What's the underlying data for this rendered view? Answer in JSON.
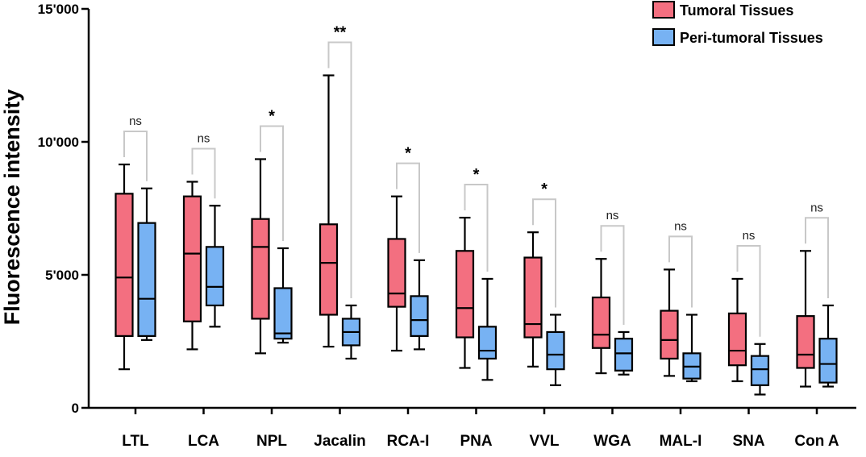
{
  "chart_data": {
    "type": "box",
    "ylabel": "Fluorescence intensity",
    "ylim": [
      0,
      15000
    ],
    "yticks": [
      0,
      5000,
      10000,
      15000
    ],
    "ytick_labels": [
      "0",
      "5'000",
      "10'000",
      "15'000"
    ],
    "legend": {
      "placement": "top-right"
    },
    "colors": {
      "tumoral": "#f36f80",
      "peri": "#77b2f3",
      "bracket": "#c8c8c8"
    },
    "categories": [
      "LTL",
      "LCA",
      "NPL",
      "Jacalin",
      "RCA-I",
      "PNA",
      "VVL",
      "WGA",
      "MAL-I",
      "SNA",
      "Con A"
    ],
    "series": [
      {
        "name": "Tumoral Tissues",
        "boxes": [
          {
            "min": 1450,
            "q1": 2700,
            "median": 4900,
            "q3": 8050,
            "max": 9150
          },
          {
            "min": 2200,
            "q1": 3250,
            "median": 5800,
            "q3": 7950,
            "max": 8500
          },
          {
            "min": 2050,
            "q1": 3350,
            "median": 6050,
            "q3": 7100,
            "max": 9350
          },
          {
            "min": 2300,
            "q1": 3500,
            "median": 5450,
            "q3": 6900,
            "max": 12500
          },
          {
            "min": 2150,
            "q1": 3800,
            "median": 4300,
            "q3": 6350,
            "max": 7950
          },
          {
            "min": 1500,
            "q1": 2650,
            "median": 3750,
            "q3": 5900,
            "max": 7150
          },
          {
            "min": 1550,
            "q1": 2650,
            "median": 3150,
            "q3": 5650,
            "max": 6600
          },
          {
            "min": 1300,
            "q1": 2250,
            "median": 2750,
            "q3": 4150,
            "max": 5600
          },
          {
            "min": 1200,
            "q1": 1850,
            "median": 2550,
            "q3": 3650,
            "max": 5200
          },
          {
            "min": 1000,
            "q1": 1600,
            "median": 2150,
            "q3": 3550,
            "max": 4850
          },
          {
            "min": 800,
            "q1": 1500,
            "median": 2000,
            "q3": 3450,
            "max": 5900
          }
        ]
      },
      {
        "name": "Peri-tumoral Tissues",
        "boxes": [
          {
            "min": 2550,
            "q1": 2700,
            "median": 4100,
            "q3": 6950,
            "max": 8250
          },
          {
            "min": 3050,
            "q1": 3850,
            "median": 4550,
            "q3": 6050,
            "max": 7600
          },
          {
            "min": 2450,
            "q1": 2600,
            "median": 2800,
            "q3": 4500,
            "max": 6000
          },
          {
            "min": 1850,
            "q1": 2350,
            "median": 2850,
            "q3": 3350,
            "max": 3850
          },
          {
            "min": 2200,
            "q1": 2700,
            "median": 3300,
            "q3": 4200,
            "max": 5550
          },
          {
            "min": 1050,
            "q1": 1850,
            "median": 2150,
            "q3": 3050,
            "max": 4850
          },
          {
            "min": 850,
            "q1": 1450,
            "median": 2000,
            "q3": 2850,
            "max": 3500
          },
          {
            "min": 1250,
            "q1": 1400,
            "median": 2050,
            "q3": 2600,
            "max": 2850
          },
          {
            "min": 1000,
            "q1": 1100,
            "median": 1550,
            "q3": 2050,
            "max": 3500
          },
          {
            "min": 500,
            "q1": 850,
            "median": 1450,
            "q3": 1950,
            "max": 2400
          },
          {
            "min": 800,
            "q1": 950,
            "median": 1650,
            "q3": 2600,
            "max": 3850
          }
        ]
      }
    ],
    "significance": [
      "ns",
      "ns",
      "*",
      "**",
      "*",
      "*",
      "*",
      "ns",
      "ns",
      "ns",
      "ns"
    ]
  }
}
